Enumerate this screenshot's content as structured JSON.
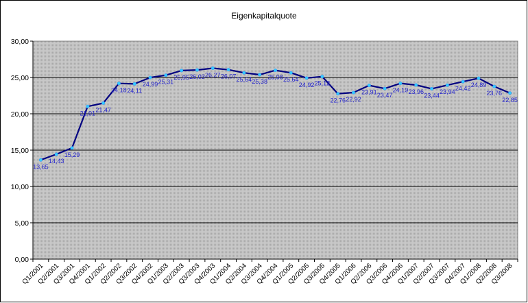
{
  "chart_data": {
    "type": "line",
    "title": "Eigenkapitalquote",
    "xlabel": "",
    "ylabel": "",
    "ylim": [
      0,
      30
    ],
    "y_ticks": [
      "0,00",
      "5,00",
      "10,00",
      "15,00",
      "20,00",
      "25,00",
      "30,00"
    ],
    "grid": true,
    "legend": "none",
    "categories": [
      "Q1/2001",
      "Q2/2001",
      "Q3/2001",
      "Q4/2001",
      "Q1/2002",
      "Q2/2002",
      "Q3/2002",
      "Q4/2002",
      "Q1/2003",
      "Q2/2003",
      "Q3/2003",
      "Q4/2003",
      "Q1/2004",
      "Q2/2004",
      "Q3/2004",
      "Q4/2004",
      "Q1/2005",
      "Q2/2005",
      "Q3/2005",
      "Q4/2005",
      "Q1/2006",
      "Q2/2006",
      "Q3/2006",
      "Q4/2006",
      "Q1/2007",
      "Q2/2007",
      "Q3/2007",
      "Q4/2007",
      "Q1/2008",
      "Q2/2008",
      "Q3/2008"
    ],
    "values": [
      13.65,
      14.43,
      15.29,
      21.01,
      21.47,
      24.18,
      24.11,
      24.99,
      25.31,
      25.95,
      26.03,
      26.27,
      26.07,
      25.64,
      25.38,
      25.98,
      25.64,
      24.92,
      25.12,
      22.76,
      22.92,
      23.91,
      23.47,
      24.19,
      23.96,
      23.44,
      23.94,
      24.42,
      24.89,
      23.76,
      22.85
    ],
    "labels": [
      "13,65",
      "14,43",
      "15,29",
      "21,01",
      "21,47",
      "24,18",
      "24,11",
      "24,99",
      "25,31",
      "25,95",
      "26,03",
      "26,27",
      "26,07",
      "25,64",
      "25,38",
      "25,98",
      "25,64",
      "24,92",
      "25,12",
      "22,76",
      "22,92",
      "23,91",
      "23,47",
      "24,19",
      "23,96",
      "23,44",
      "23,94",
      "24,42",
      "24,89",
      "23,76",
      "22,85"
    ],
    "colors": {
      "plot_bg": "#c0c0c0",
      "line": "#000080",
      "marker": "#33ccff",
      "data_label": "#2222cc",
      "gridline": "#000000"
    }
  }
}
